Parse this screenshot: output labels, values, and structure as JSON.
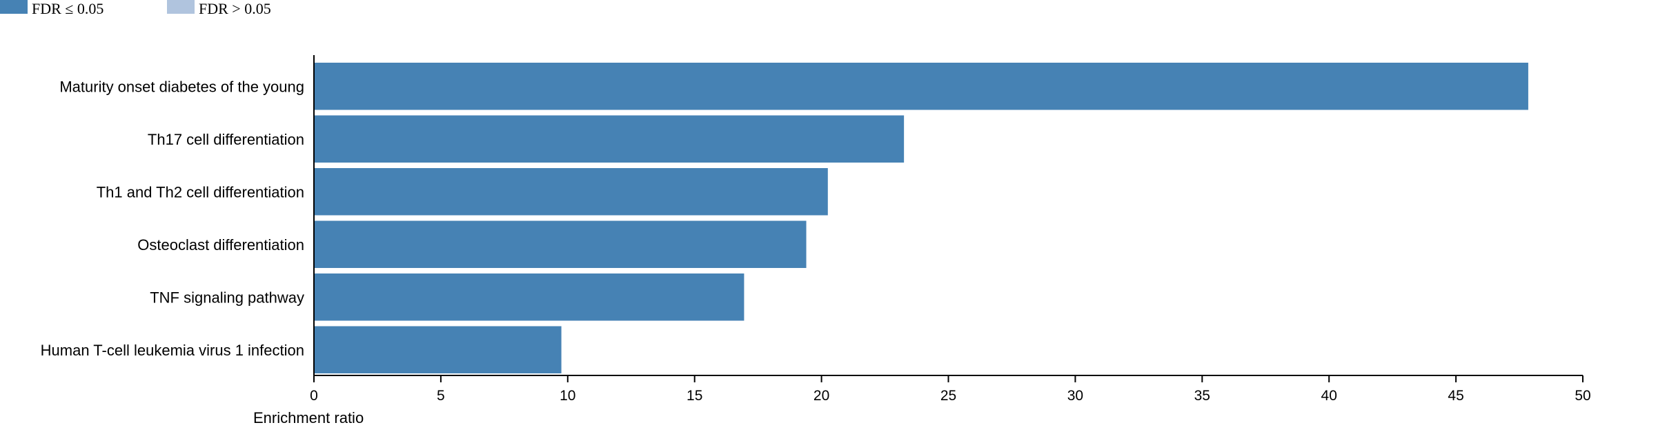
{
  "legend": {
    "items": [
      {
        "label": "FDR ≤ 0.05",
        "color": "#4682b4"
      },
      {
        "label": "FDR > 0.05",
        "color": "#b0c4de"
      }
    ]
  },
  "chart_data": {
    "type": "bar",
    "orientation": "horizontal",
    "categories": [
      "Maturity onset diabetes of the young",
      "Th17 cell differentiation",
      "Th1 and Th2 cell differentiation",
      "Osteoclast differentiation",
      "TNF signaling pathway",
      "Human T-cell leukemia virus 1 infection"
    ],
    "values": [
      47.85,
      23.25,
      20.25,
      19.4,
      16.95,
      9.75
    ],
    "bar_color": "#4682b4",
    "xlabel": "Enrichment ratio",
    "xlim": [
      0,
      50
    ],
    "xticks": [
      0,
      5,
      10,
      15,
      20,
      25,
      30,
      35,
      40,
      45,
      50
    ],
    "grid": false
  }
}
